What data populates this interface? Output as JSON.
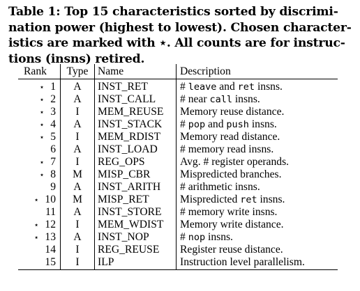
{
  "caption": {
    "lines": [
      "Table 1: Top 15 characteristics sorted by discrimi-",
      "nation power (highest to lowest). Chosen character-",
      "istics are marked with ⋆. All counts are for instruc-",
      "tions (insns) retired."
    ]
  },
  "table": {
    "headers": {
      "rank": "Rank",
      "type": "Type",
      "name": "Name",
      "description": "Description"
    },
    "rows": [
      {
        "marker": "⋆",
        "rank": "1",
        "type": "A",
        "name": "INST_RET",
        "desc_parts": [
          {
            "t": "# ",
            "m": false
          },
          {
            "t": "leave",
            "m": true
          },
          {
            "t": " and ",
            "m": false
          },
          {
            "t": "ret",
            "m": true
          },
          {
            "t": " insns.",
            "m": false
          }
        ]
      },
      {
        "marker": "⋆",
        "rank": "2",
        "type": "A",
        "name": "INST_CALL",
        "desc_parts": [
          {
            "t": "# near ",
            "m": false
          },
          {
            "t": "call",
            "m": true
          },
          {
            "t": " insns.",
            "m": false
          }
        ]
      },
      {
        "marker": "⋆",
        "rank": "3",
        "type": "I",
        "name": "MEM_REUSE",
        "desc_parts": [
          {
            "t": "Memory reuse distance.",
            "m": false
          }
        ]
      },
      {
        "marker": "⋆",
        "rank": "4",
        "type": "A",
        "name": "INST_STACK",
        "desc_parts": [
          {
            "t": "# ",
            "m": false
          },
          {
            "t": "pop",
            "m": true
          },
          {
            "t": " and ",
            "m": false
          },
          {
            "t": "push",
            "m": true
          },
          {
            "t": " insns.",
            "m": false
          }
        ]
      },
      {
        "marker": "⋆",
        "rank": "5",
        "type": "I",
        "name": "MEM_RDIST",
        "desc_parts": [
          {
            "t": "Memory read distance.",
            "m": false
          }
        ]
      },
      {
        "marker": "",
        "rank": "6",
        "type": "A",
        "name": "INST_LOAD",
        "desc_parts": [
          {
            "t": "# memory read insns.",
            "m": false
          }
        ]
      },
      {
        "marker": "⋆",
        "rank": "7",
        "type": "I",
        "name": "REG_OPS",
        "desc_parts": [
          {
            "t": "Avg. # register operands.",
            "m": false
          }
        ]
      },
      {
        "marker": "⋆",
        "rank": "8",
        "type": "M",
        "name": "MISP_CBR",
        "desc_parts": [
          {
            "t": "Mispredicted branches.",
            "m": false
          }
        ]
      },
      {
        "marker": "",
        "rank": "9",
        "type": "A",
        "name": "INST_ARITH",
        "desc_parts": [
          {
            "t": "# arithmetic insns.",
            "m": false
          }
        ]
      },
      {
        "marker": "⋆",
        "rank": "10",
        "type": "M",
        "name": "MISP_RET",
        "desc_parts": [
          {
            "t": "Mispredicted ",
            "m": false
          },
          {
            "t": "ret",
            "m": true
          },
          {
            "t": " insns.",
            "m": false
          }
        ]
      },
      {
        "marker": "",
        "rank": "11",
        "type": "A",
        "name": "INST_STORE",
        "desc_parts": [
          {
            "t": "# memory write insns.",
            "m": false
          }
        ]
      },
      {
        "marker": "⋆",
        "rank": "12",
        "type": "I",
        "name": "MEM_WDIST",
        "desc_parts": [
          {
            "t": "Memory write distance.",
            "m": false
          }
        ]
      },
      {
        "marker": "⋆",
        "rank": "13",
        "type": "A",
        "name": "INST_NOP",
        "desc_parts": [
          {
            "t": "# ",
            "m": false
          },
          {
            "t": "nop",
            "m": true
          },
          {
            "t": " insns.",
            "m": false
          }
        ]
      },
      {
        "marker": "",
        "rank": "14",
        "type": "I",
        "name": "REG_REUSE",
        "desc_parts": [
          {
            "t": "Register reuse distance.",
            "m": false
          }
        ]
      },
      {
        "marker": "",
        "rank": "15",
        "type": "I",
        "name": "ILP",
        "desc_parts": [
          {
            "t": "Instruction level parallelism.",
            "m": false
          }
        ]
      }
    ]
  }
}
